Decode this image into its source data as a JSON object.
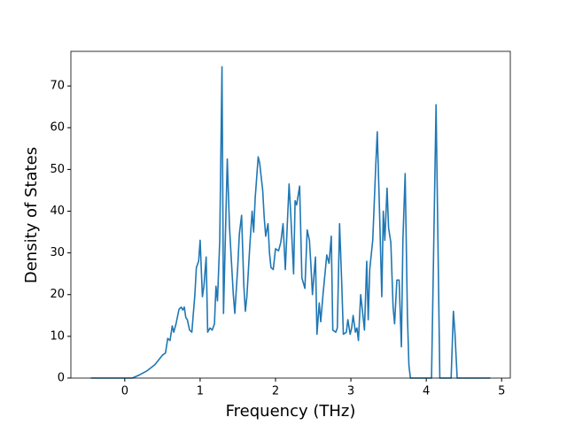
{
  "chart_data": {
    "type": "line",
    "xlabel": "Frequency (THz)",
    "ylabel": "Density of States",
    "x": [
      -0.45,
      0.1,
      0.2,
      0.3,
      0.4,
      0.5,
      0.54,
      0.57,
      0.6,
      0.63,
      0.65,
      0.68,
      0.72,
      0.75,
      0.77,
      0.79,
      0.81,
      0.83,
      0.86,
      0.89,
      0.93,
      0.95,
      0.98,
      1.0,
      1.03,
      1.05,
      1.08,
      1.1,
      1.13,
      1.16,
      1.19,
      1.21,
      1.23,
      1.26,
      1.29,
      1.31,
      1.36,
      1.39,
      1.44,
      1.46,
      1.5,
      1.52,
      1.55,
      1.58,
      1.6,
      1.62,
      1.66,
      1.69,
      1.71,
      1.73,
      1.77,
      1.79,
      1.83,
      1.85,
      1.87,
      1.9,
      1.92,
      1.94,
      1.97,
      2.0,
      2.04,
      2.07,
      2.1,
      2.13,
      2.18,
      2.2,
      2.24,
      2.26,
      2.28,
      2.32,
      2.35,
      2.39,
      2.42,
      2.45,
      2.47,
      2.49,
      2.53,
      2.55,
      2.58,
      2.6,
      2.63,
      2.68,
      2.71,
      2.74,
      2.76,
      2.8,
      2.82,
      2.85,
      2.88,
      2.9,
      2.94,
      2.96,
      2.99,
      3.01,
      3.03,
      3.06,
      3.08,
      3.1,
      3.13,
      3.16,
      3.18,
      3.21,
      3.23,
      3.25,
      3.29,
      3.33,
      3.35,
      3.38,
      3.41,
      3.43,
      3.45,
      3.48,
      3.5,
      3.53,
      3.56,
      3.58,
      3.61,
      3.64,
      3.67,
      3.69,
      3.72,
      3.75,
      3.77,
      3.79,
      4.07,
      4.13,
      4.18,
      4.33,
      4.36,
      4.38,
      4.41,
      4.85
    ],
    "series": [
      {
        "color": "#1f77b4",
        "values": [
          0,
          0,
          0.8,
          1.8,
          3.2,
          5.5,
          6,
          9.5,
          9,
          12.5,
          11,
          13,
          16.5,
          17,
          16.3,
          17,
          14.5,
          14,
          11.5,
          11,
          20,
          26.5,
          28,
          33,
          19.5,
          22,
          29,
          11,
          12,
          11.5,
          13,
          22,
          18.5,
          33,
          74.6,
          15.5,
          52.5,
          36,
          20,
          15.5,
          27,
          34.5,
          39,
          22,
          16,
          19.5,
          32,
          40,
          35,
          43,
          53,
          51.5,
          45,
          38.5,
          34,
          37,
          30,
          26.5,
          26,
          31,
          30.5,
          32.5,
          37,
          26,
          46.5,
          40,
          25,
          42.5,
          41.5,
          46,
          24,
          21.5,
          35.5,
          33,
          27,
          20,
          29,
          10.5,
          18,
          13.5,
          20,
          29.5,
          27.5,
          34,
          11.5,
          11,
          12,
          37,
          22,
          10.5,
          11,
          14,
          10.5,
          12,
          15,
          11,
          12,
          9,
          20,
          15,
          11.5,
          28,
          14,
          26,
          33,
          51,
          59,
          40,
          19.5,
          40,
          33,
          45.5,
          36,
          32.5,
          17,
          13,
          23.5,
          23.5,
          7.5,
          33,
          49,
          15,
          3,
          0,
          0,
          65.5,
          0,
          0,
          16,
          11,
          0,
          0
        ]
      }
    ],
    "xlim": [
      -0.715,
      5.115
    ],
    "xticks": [
      0,
      1,
      2,
      3,
      4,
      5
    ],
    "ylim": [
      0,
      78.3
    ],
    "yticks": [
      0,
      10,
      20,
      30,
      40,
      50,
      60,
      70
    ]
  }
}
